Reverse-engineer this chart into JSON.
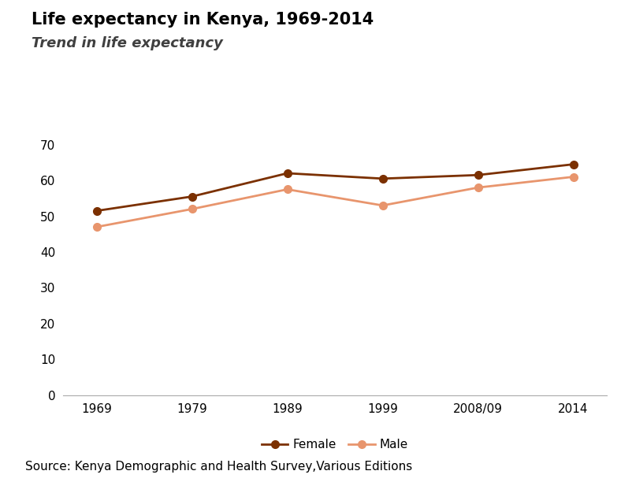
{
  "title": "Life expectancy in Kenya, 1969-2014",
  "subtitle": "Trend in life expectancy",
  "x_labels": [
    "1969",
    "1979",
    "1989",
    "1999",
    "2008/09",
    "2014"
  ],
  "x_values": [
    0,
    1,
    2,
    3,
    4,
    5
  ],
  "female_values": [
    51.5,
    55.5,
    62.0,
    60.5,
    61.5,
    64.5
  ],
  "male_values": [
    47.0,
    52.0,
    57.5,
    53.0,
    58.0,
    61.0
  ],
  "female_color": "#7B3000",
  "male_color": "#E8956D",
  "ylim": [
    0,
    70
  ],
  "yticks": [
    0,
    10,
    20,
    30,
    40,
    50,
    60,
    70
  ],
  "source_text": "Source: Kenya Demographic and Health Survey,Various Editions",
  "legend_labels": [
    "Female",
    "Male"
  ],
  "background_color": "#ffffff",
  "title_fontsize": 15,
  "subtitle_fontsize": 13,
  "tick_fontsize": 11,
  "source_fontsize": 11,
  "legend_fontsize": 11,
  "line_width": 2.0,
  "marker_size": 7
}
